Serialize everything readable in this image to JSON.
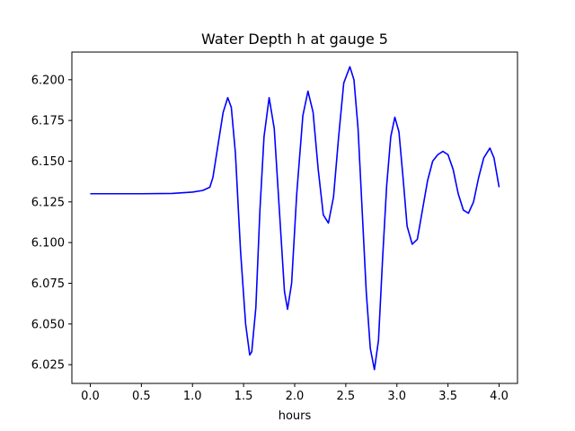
{
  "chart_data": {
    "type": "line",
    "title": "Water Depth h at gauge 5",
    "xlabel": "hours",
    "ylabel": "",
    "xlim": [
      -0.18,
      4.18
    ],
    "ylim": [
      6.0135,
      6.217
    ],
    "grid": false,
    "x_ticks": [
      0.0,
      0.5,
      1.0,
      1.5,
      2.0,
      2.5,
      3.0,
      3.5,
      4.0
    ],
    "x_tick_labels": [
      "0.0",
      "0.5",
      "1.0",
      "1.5",
      "2.0",
      "2.5",
      "3.0",
      "3.5",
      "4.0"
    ],
    "y_ticks": [
      6.025,
      6.05,
      6.075,
      6.1,
      6.125,
      6.15,
      6.175,
      6.2
    ],
    "y_tick_labels": [
      "6.025",
      "6.050",
      "6.075",
      "6.100",
      "6.125",
      "6.150",
      "6.175",
      "6.200"
    ],
    "series": [
      {
        "color": "#0000ff",
        "x": [
          0.0,
          0.5,
          0.8,
          1.0,
          1.1,
          1.17,
          1.2,
          1.25,
          1.3,
          1.345,
          1.38,
          1.42,
          1.47,
          1.52,
          1.56,
          1.58,
          1.62,
          1.66,
          1.7,
          1.75,
          1.8,
          1.85,
          1.9,
          1.93,
          1.97,
          2.02,
          2.08,
          2.13,
          2.18,
          2.23,
          2.28,
          2.33,
          2.38,
          2.43,
          2.48,
          2.54,
          2.58,
          2.62,
          2.66,
          2.7,
          2.74,
          2.78,
          2.82,
          2.86,
          2.9,
          2.94,
          2.98,
          3.02,
          3.06,
          3.1,
          3.15,
          3.2,
          3.25,
          3.3,
          3.35,
          3.4,
          3.45,
          3.5,
          3.55,
          3.6,
          3.65,
          3.7,
          3.75,
          3.8,
          3.85,
          3.91,
          3.95,
          4.0
        ],
        "values": [
          6.13,
          6.13,
          6.1302,
          6.131,
          6.132,
          6.134,
          6.14,
          6.16,
          6.18,
          6.189,
          6.183,
          6.155,
          6.095,
          6.05,
          6.031,
          6.033,
          6.06,
          6.12,
          6.165,
          6.189,
          6.17,
          6.12,
          6.07,
          6.059,
          6.075,
          6.13,
          6.178,
          6.193,
          6.18,
          6.145,
          6.117,
          6.112,
          6.128,
          6.165,
          6.198,
          6.208,
          6.2,
          6.17,
          6.12,
          6.07,
          6.035,
          6.022,
          6.04,
          6.09,
          6.135,
          6.165,
          6.177,
          6.168,
          6.14,
          6.11,
          6.099,
          6.102,
          6.12,
          6.138,
          6.15,
          6.154,
          6.156,
          6.154,
          6.145,
          6.13,
          6.12,
          6.118,
          6.125,
          6.14,
          6.152,
          6.158,
          6.152,
          6.134
        ]
      }
    ]
  }
}
